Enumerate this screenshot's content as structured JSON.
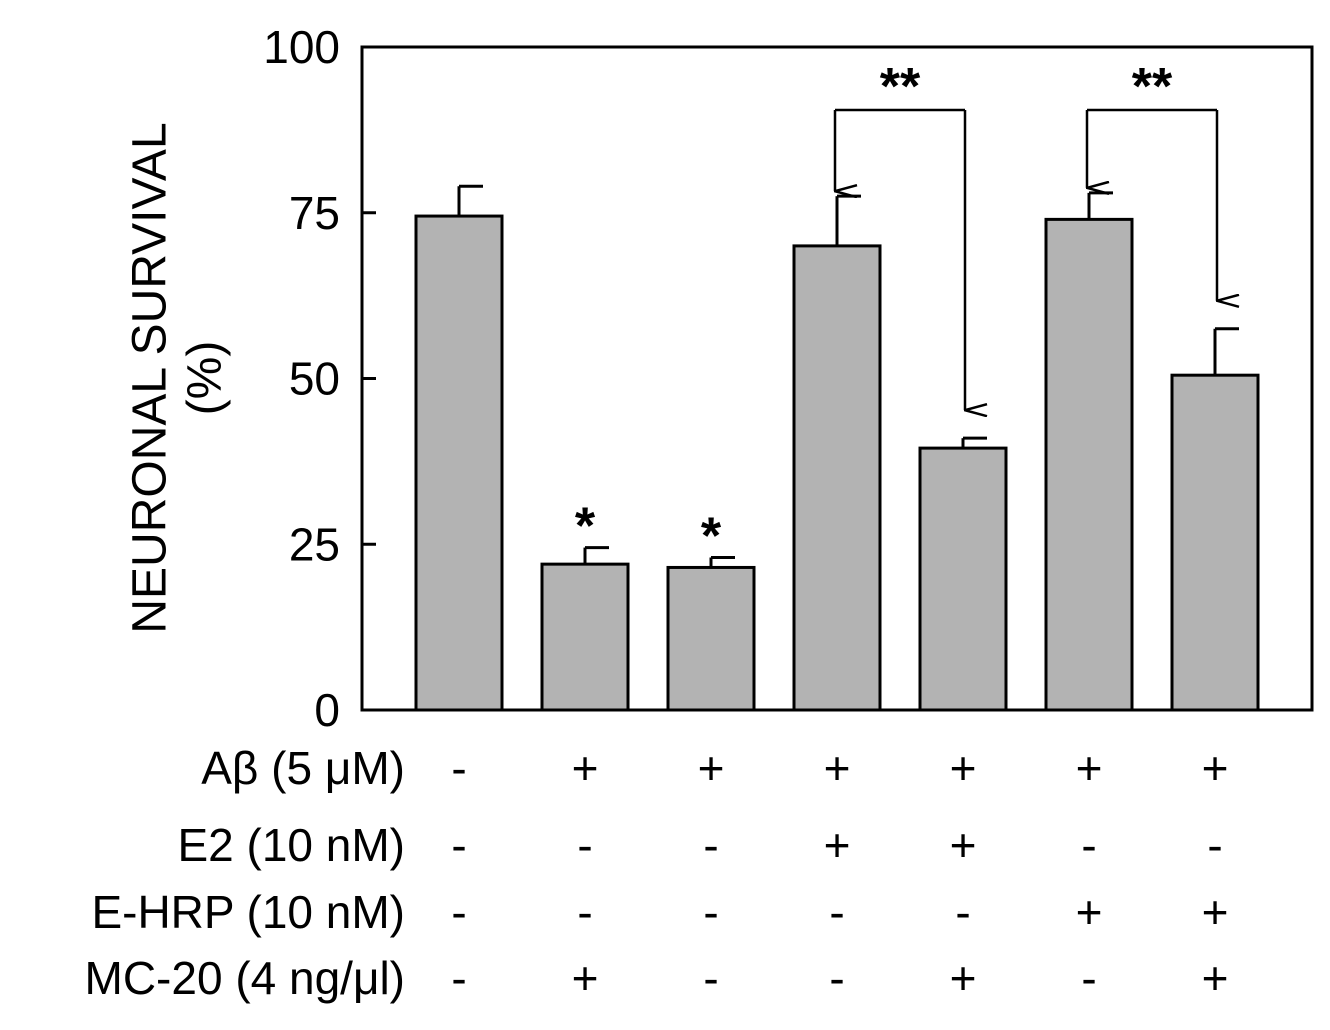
{
  "chart_data": {
    "type": "bar",
    "ylabel_lines": [
      "NEURONAL SURVIVAL",
      "(%)"
    ],
    "ylim": [
      0,
      100
    ],
    "yticks": [
      0,
      25,
      50,
      75,
      100
    ],
    "bar_color": "#b3b3b3",
    "values": [
      74.5,
      22,
      21.5,
      70,
      39.5,
      74,
      50.5
    ],
    "errors": [
      4.5,
      2.5,
      1.5,
      7.5,
      1.5,
      4,
      7
    ],
    "stars": [
      "",
      "*",
      "*",
      "",
      "",
      "",
      ""
    ],
    "comparisons": [
      {
        "from": 3,
        "to": 4,
        "label": "**"
      },
      {
        "from": 5,
        "to": 6,
        "label": "**"
      }
    ],
    "condition_rows": [
      {
        "label": "Aβ (5 μM)",
        "values": [
          "-",
          "+",
          "+",
          "+",
          "+",
          "+",
          "+"
        ]
      },
      {
        "label": "E2 (10 nM)",
        "values": [
          "-",
          "-",
          "-",
          "+",
          "+",
          "-",
          "-"
        ]
      },
      {
        "label": "E-HRP (10 nM)",
        "values": [
          "-",
          "-",
          "-",
          "-",
          "-",
          "+",
          "+"
        ]
      },
      {
        "label": "MC-20 (4 ng/μl)",
        "values": [
          "-",
          "+",
          "-",
          "-",
          "+",
          "-",
          "+"
        ]
      }
    ]
  }
}
